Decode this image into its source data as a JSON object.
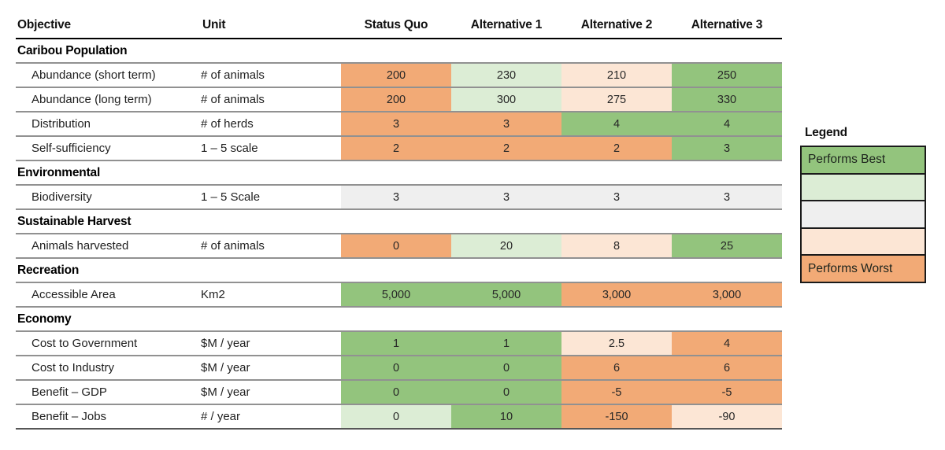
{
  "chart_data": {
    "type": "table",
    "columns": [
      "Objective",
      "Unit",
      "Status Quo",
      "Alternative 1",
      "Alternative 2",
      "Alternative 3"
    ],
    "alternatives": [
      "Status Quo",
      "Alternative 1",
      "Alternative 2",
      "Alternative 3"
    ],
    "sections": [
      {
        "title": "Caribou Population",
        "rows": [
          {
            "objective": "Abundance (short term)",
            "unit": "# of animals",
            "values": [
              "200",
              "230",
              "210",
              "250"
            ],
            "ratings": [
              "worst",
              "good",
              "poor",
              "best"
            ]
          },
          {
            "objective": "Abundance (long term)",
            "unit": "# of animals",
            "values": [
              "200",
              "300",
              "275",
              "330"
            ],
            "ratings": [
              "worst",
              "good",
              "poor",
              "best"
            ]
          },
          {
            "objective": "Distribution",
            "unit": "# of herds",
            "values": [
              "3",
              "3",
              "4",
              "4"
            ],
            "ratings": [
              "worst",
              "worst",
              "best",
              "best"
            ]
          },
          {
            "objective": "Self-sufficiency",
            "unit": "1 – 5 scale",
            "values": [
              "2",
              "2",
              "2",
              "3"
            ],
            "ratings": [
              "worst",
              "worst",
              "worst",
              "best"
            ]
          }
        ]
      },
      {
        "title": "Environmental",
        "rows": [
          {
            "objective": "Biodiversity",
            "unit": "1 – 5 Scale",
            "values": [
              "3",
              "3",
              "3",
              "3"
            ],
            "ratings": [
              "neutral",
              "neutral",
              "neutral",
              "neutral"
            ]
          }
        ]
      },
      {
        "title": "Sustainable Harvest",
        "rows": [
          {
            "objective": "Animals harvested",
            "unit": "# of animals",
            "values": [
              "0",
              "20",
              "8",
              "25"
            ],
            "ratings": [
              "worst",
              "good",
              "poor",
              "best"
            ]
          }
        ]
      },
      {
        "title": "Recreation",
        "rows": [
          {
            "objective": "Accessible Area",
            "unit": "Km2",
            "values": [
              "5,000",
              "5,000",
              "3,000",
              "3,000"
            ],
            "ratings": [
              "best",
              "best",
              "worst",
              "worst"
            ]
          }
        ]
      },
      {
        "title": "Economy",
        "rows": [
          {
            "objective": "Cost to Government",
            "unit": "$M / year",
            "values": [
              "1",
              "1",
              "2.5",
              "4"
            ],
            "ratings": [
              "best",
              "best",
              "poor",
              "worst"
            ]
          },
          {
            "objective": "Cost to Industry",
            "unit": "$M / year",
            "values": [
              "0",
              "0",
              "6",
              "6"
            ],
            "ratings": [
              "best",
              "best",
              "worst",
              "worst"
            ]
          },
          {
            "objective": "Benefit – GDP",
            "unit": "$M / year",
            "values": [
              "0",
              "0",
              "-5",
              "-5"
            ],
            "ratings": [
              "best",
              "best",
              "worst",
              "worst"
            ]
          },
          {
            "objective": "Benefit – Jobs",
            "unit": "# / year",
            "values": [
              "0",
              "10",
              "-150",
              "-90"
            ],
            "ratings": [
              "good",
              "best",
              "worst",
              "poor"
            ]
          }
        ]
      }
    ],
    "legend_position": "right"
  },
  "legend": {
    "title": "Legend",
    "items": [
      {
        "label": "Performs Best",
        "rating": "best"
      },
      {
        "label": "",
        "rating": "good"
      },
      {
        "label": "",
        "rating": "neutral"
      },
      {
        "label": "",
        "rating": "poor"
      },
      {
        "label": "Performs Worst",
        "rating": "worst"
      }
    ]
  },
  "colors": {
    "best": "#93c47d",
    "good": "#dcedd5",
    "neutral": "#efefef",
    "poor": "#fce6d5",
    "worst": "#f2aa76"
  }
}
